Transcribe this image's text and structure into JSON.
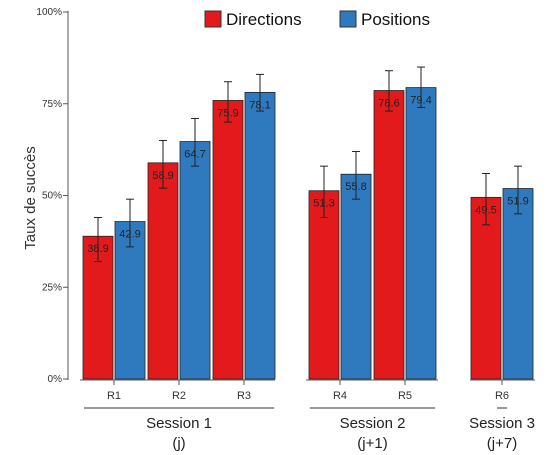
{
  "chart_data": {
    "type": "bar",
    "title": "",
    "xlabel": "",
    "ylabel": "Taux de succès",
    "ylim": [
      0,
      100
    ],
    "yticks": [
      "0%",
      "25%",
      "50%",
      "75%",
      "100%"
    ],
    "legend_position": "top",
    "categories": [
      "R1",
      "R2",
      "R3",
      "R4",
      "R5",
      "R6"
    ],
    "groups": [
      {
        "line1": "Session 1",
        "line2": "(j)",
        "categories": [
          "R1",
          "R2",
          "R3"
        ]
      },
      {
        "line1": "Session 2",
        "line2": "(j+1)",
        "categories": [
          "R4",
          "R5"
        ]
      },
      {
        "line1": "Session 3",
        "line2": "(j+7)",
        "categories": [
          "R6"
        ]
      }
    ],
    "series": [
      {
        "name": "Directions",
        "color": "#e31a1c",
        "values": [
          38.9,
          58.9,
          75.9,
          51.3,
          78.6,
          49.5
        ],
        "labels": [
          "38.9",
          "58.9",
          "75.9",
          "51.3",
          "78.6",
          "49.5"
        ],
        "err_low": [
          32,
          52,
          70,
          44,
          73,
          42
        ],
        "err_high": [
          44,
          65,
          81,
          58,
          84,
          56
        ]
      },
      {
        "name": "Positions",
        "color": "#2f7abf",
        "values": [
          42.9,
          64.7,
          78.1,
          55.8,
          79.4,
          51.9
        ],
        "labels": [
          "42.9",
          "64.7",
          "78.1",
          "55.8",
          "79.4",
          "51.9"
        ],
        "err_low": [
          36,
          58,
          73,
          49,
          74,
          45
        ],
        "err_high": [
          49,
          71,
          83,
          62,
          85,
          58
        ]
      }
    ]
  }
}
